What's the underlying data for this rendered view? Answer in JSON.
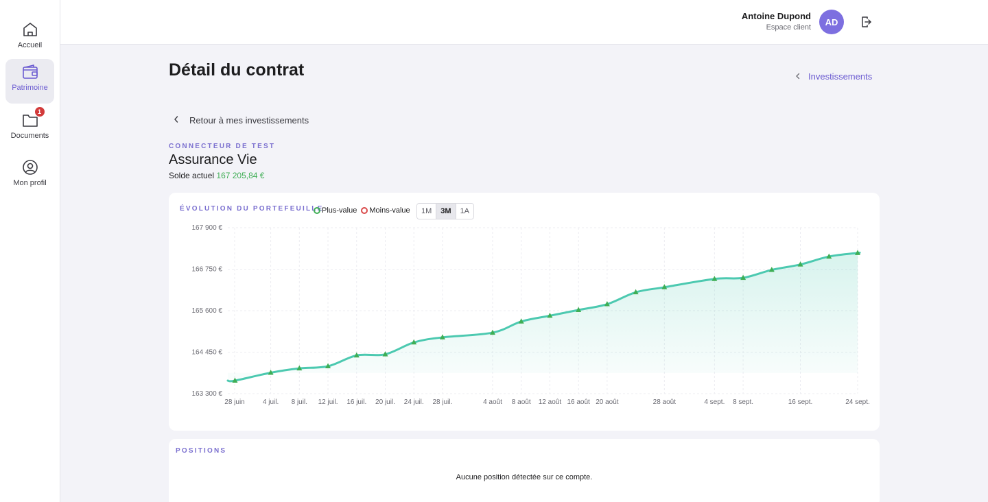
{
  "sidebar": {
    "items": [
      {
        "label": "Accueil",
        "icon": "home-icon"
      },
      {
        "label": "Patrimoine",
        "icon": "wallet-icon"
      },
      {
        "label": "Documents",
        "icon": "folder-icon",
        "badge": "1"
      },
      {
        "label": "Mon profil",
        "icon": "user-circle-icon"
      }
    ],
    "active_color": "#6b5bd1"
  },
  "header": {
    "user_name": "Antoine Dupond",
    "user_role": "Espace client",
    "avatar_initials": "AD",
    "avatar_color": "#7d6fe0"
  },
  "page": {
    "title": "Détail du contrat",
    "breadcrumb": "Investissements",
    "back_label": "Retour à mes investissements",
    "connector": "CONNECTEUR DE TEST",
    "contract_name": "Assurance Vie",
    "balance_label": "Solde actuel",
    "balance_value": "167 205,84 €"
  },
  "portfolio": {
    "section_title": "ÉVOLUTION DU PORTEFEUILLE",
    "legend": [
      {
        "label": "Plus-value",
        "color": "#3fae55"
      },
      {
        "label": "Moins-value",
        "color": "#d94a4a"
      }
    ],
    "ranges": [
      "1M",
      "3M",
      "1A"
    ],
    "selected_range": "3M"
  },
  "chart_data": {
    "type": "area",
    "x_ticks": [
      "28 juin",
      "4 juil.",
      "8 juil.",
      "12 juil.",
      "16 juil.",
      "20 juil.",
      "24 juil.",
      "28 juil.",
      "4 août",
      "8 août",
      "12 août",
      "16 août",
      "20 août",
      "28 août",
      "4 sept.",
      "8 sept.",
      "16 sept.",
      "24 sept."
    ],
    "y_ticks": [
      "167 900 €",
      "166 750 €",
      "165 600 €",
      "164 450 €",
      "163 300 €"
    ],
    "ylim": [
      163300,
      167900
    ],
    "x_range": [
      "2024-06-28",
      "2024-09-24"
    ],
    "points": [
      {
        "date": "2024-06-29",
        "value": 163660
      },
      {
        "date": "2024-07-04",
        "value": 163880
      },
      {
        "date": "2024-07-08",
        "value": 164000
      },
      {
        "date": "2024-07-12",
        "value": 164060
      },
      {
        "date": "2024-07-16",
        "value": 164360
      },
      {
        "date": "2024-07-20",
        "value": 164390
      },
      {
        "date": "2024-07-24",
        "value": 164720
      },
      {
        "date": "2024-07-28",
        "value": 164860
      },
      {
        "date": "2024-08-04",
        "value": 164990
      },
      {
        "date": "2024-08-08",
        "value": 165300
      },
      {
        "date": "2024-08-12",
        "value": 165460
      },
      {
        "date": "2024-08-16",
        "value": 165620
      },
      {
        "date": "2024-08-20",
        "value": 165780
      },
      {
        "date": "2024-08-24",
        "value": 166110
      },
      {
        "date": "2024-08-28",
        "value": 166250
      },
      {
        "date": "2024-09-04",
        "value": 166480
      },
      {
        "date": "2024-09-08",
        "value": 166510
      },
      {
        "date": "2024-09-12",
        "value": 166730
      },
      {
        "date": "2024-09-16",
        "value": 166880
      },
      {
        "date": "2024-09-20",
        "value": 167100
      },
      {
        "date": "2024-09-24",
        "value": 167200
      }
    ],
    "line_color": "#4cc9b0",
    "marker_color": "#3fae55",
    "grid": true
  },
  "positions": {
    "section_title": "POSITIONS",
    "empty_message": "Aucune position détectée sur ce compte."
  }
}
